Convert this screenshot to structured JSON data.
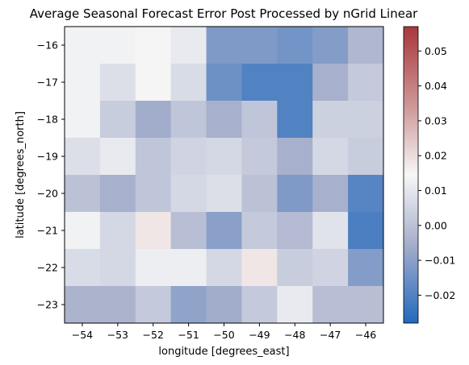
{
  "chart_data": {
    "type": "heatmap",
    "title": "Average Seasonal Forecast Error Post Processed by nGrid Linear",
    "xlabel": "longitude [degrees_east]",
    "ylabel": "latitude [degrees_north]",
    "x": [
      -54,
      -53,
      -52,
      -51,
      -50,
      -49,
      -48,
      -47,
      -46
    ],
    "y": [
      -16,
      -17,
      -18,
      -19,
      -20,
      -21,
      -22,
      -23
    ],
    "x_tick_labels": [
      "−54",
      "−53",
      "−52",
      "−51",
      "−50",
      "−49",
      "−48",
      "−47",
      "−46"
    ],
    "y_tick_labels": [
      "−16",
      "−17",
      "−18",
      "−19",
      "−20",
      "−21",
      "−22",
      "−23"
    ],
    "xlim": [
      -54.5,
      -45.5
    ],
    "ylim": [
      -23.5,
      -15.5
    ],
    "values": [
      [
        0.013,
        0.013,
        0.015,
        0.011,
        -0.012,
        -0.012,
        -0.014,
        -0.011,
        -0.003
      ],
      [
        0.013,
        0.008,
        0.014,
        0.007,
        -0.015,
        -0.02,
        -0.02,
        -0.005,
        0.002
      ],
      [
        0.013,
        0.003,
        -0.006,
        0.001,
        -0.005,
        0.001,
        -0.02,
        0.004,
        0.004
      ],
      [
        0.008,
        0.011,
        0.001,
        0.005,
        0.006,
        0.002,
        -0.005,
        0.006,
        0.003
      ],
      [
        0.0,
        -0.005,
        0.001,
        0.006,
        0.008,
        0.0,
        -0.012,
        -0.005,
        -0.019
      ],
      [
        0.013,
        0.006,
        0.018,
        -0.001,
        -0.01,
        0.002,
        -0.002,
        0.009,
        -0.021
      ],
      [
        0.007,
        0.006,
        0.012,
        0.012,
        0.006,
        0.018,
        0.003,
        0.005,
        -0.011
      ],
      [
        -0.004,
        -0.004,
        0.002,
        -0.009,
        -0.006,
        0.002,
        0.011,
        -0.001,
        -0.001
      ]
    ],
    "colorbar": {
      "vmin": -0.028,
      "vmax": 0.057,
      "ticks": [
        -0.02,
        -0.01,
        0.0,
        0.01,
        0.02,
        0.03,
        0.04,
        0.05
      ],
      "tick_labels": [
        "−0.02",
        "−0.01",
        "0.00",
        "0.01",
        "0.02",
        "0.03",
        "0.04",
        "0.05"
      ],
      "colormap": "vlag",
      "colors": [
        "#2369bd",
        "#a9b1cc",
        "#f7f7f7",
        "#cf9a9a",
        "#a9373b"
      ],
      "neutral_value": 0.0145
    },
    "grid": false,
    "legend": "colorbar-right"
  }
}
